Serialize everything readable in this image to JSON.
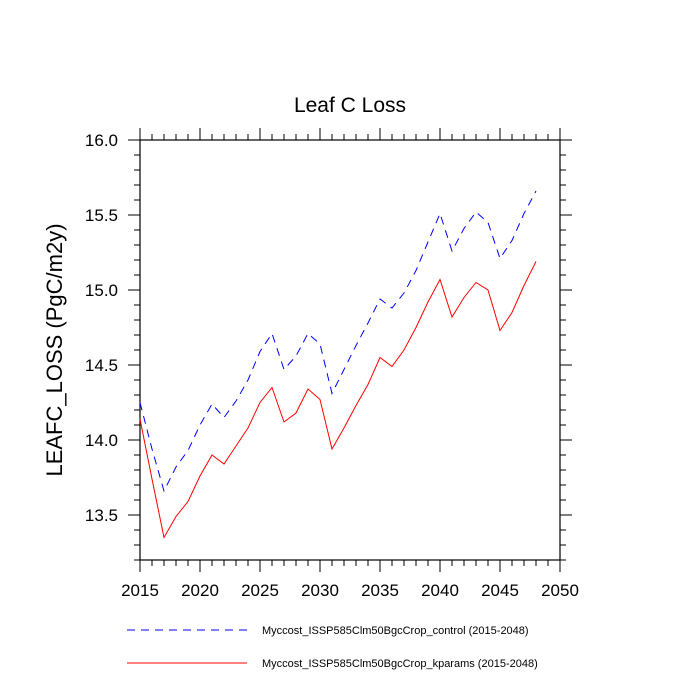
{
  "chart_data": {
    "type": "line",
    "title": "Leaf C Loss",
    "xlabel": "",
    "ylabel": "LEAFC_LOSS  (PgC/m2y)",
    "xlim": [
      2015,
      2050
    ],
    "ylim": [
      13.2,
      16.0
    ],
    "xticks": [
      2015,
      2020,
      2025,
      2030,
      2035,
      2040,
      2045,
      2050
    ],
    "yticks": [
      13.5,
      14.0,
      14.5,
      15.0,
      15.5,
      16.0
    ],
    "xtick_labels": [
      "2015",
      "2020",
      "2025",
      "2030",
      "2035",
      "2040",
      "2045",
      "2050"
    ],
    "ytick_labels": [
      "13.5",
      "14.0",
      "14.5",
      "15.0",
      "15.5",
      "16.0"
    ],
    "grid": false,
    "legend_position": "bottom",
    "x": [
      2015,
      2016,
      2017,
      2018,
      2019,
      2020,
      2021,
      2022,
      2023,
      2024,
      2025,
      2026,
      2027,
      2028,
      2029,
      2030,
      2031,
      2032,
      2033,
      2034,
      2035,
      2036,
      2037,
      2038,
      2039,
      2040,
      2041,
      2042,
      2043,
      2044,
      2045,
      2046,
      2047,
      2048
    ],
    "series": [
      {
        "name": "Myccost_ISSP585Clm50BgcCrop_control (2015-2048)",
        "color": "#0000ff",
        "dash": "dashed",
        "values": [
          14.25,
          13.94,
          13.66,
          13.82,
          13.93,
          14.1,
          14.24,
          14.15,
          14.26,
          14.4,
          14.59,
          14.71,
          14.47,
          14.56,
          14.71,
          14.64,
          14.31,
          14.47,
          14.63,
          14.78,
          14.94,
          14.88,
          14.98,
          15.13,
          15.32,
          15.51,
          15.26,
          15.41,
          15.52,
          15.45,
          15.21,
          15.33,
          15.51,
          15.66
        ]
      },
      {
        "name": "Myccost_ISSP585Clm50BgcCrop_kparams (2015-2048)",
        "color": "#ff0000",
        "dash": "solid",
        "values": [
          14.14,
          13.74,
          13.35,
          13.49,
          13.59,
          13.76,
          13.9,
          13.84,
          13.96,
          14.08,
          14.25,
          14.35,
          14.12,
          14.18,
          14.34,
          14.27,
          13.94,
          14.08,
          14.23,
          14.37,
          14.55,
          14.49,
          14.6,
          14.75,
          14.92,
          15.07,
          14.82,
          14.95,
          15.05,
          15.0,
          14.73,
          14.85,
          15.03,
          15.19
        ]
      }
    ]
  }
}
